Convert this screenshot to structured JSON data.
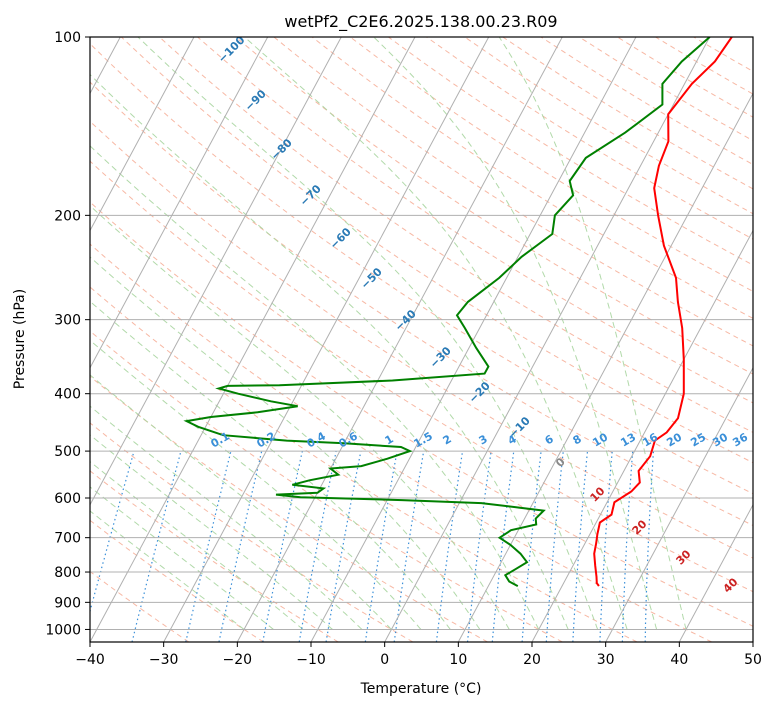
{
  "chart_data": {
    "type": "line",
    "title": "wetPf2_C2E6.2025.138.00.23.R09",
    "xlabel": "Temperature (°C)",
    "ylabel": "Pressure (hPa)",
    "xlim": [
      -40,
      50
    ],
    "ylim": [
      1050,
      100
    ],
    "y_scale": "log",
    "grid": true,
    "x_ticks": [
      -40,
      -30,
      -20,
      -10,
      0,
      10,
      20,
      30,
      40,
      50
    ],
    "y_ticks": [
      100,
      200,
      300,
      400,
      500,
      600,
      700,
      800,
      900,
      1000
    ],
    "x_tick_labels": [
      "−40",
      "−30",
      "−20",
      "−10",
      "0",
      "10",
      "20",
      "30",
      "40",
      "50"
    ],
    "y_tick_labels": [
      "100",
      "200",
      "300",
      "400",
      "500",
      "600",
      "700",
      "800",
      "900",
      "1000"
    ],
    "series": [
      {
        "color": "#ff0000",
        "points": [
          [
            3.0,
            100
          ],
          [
            2.5,
            110
          ],
          [
            1.0,
            120
          ],
          [
            0.0,
            135
          ],
          [
            2.0,
            150
          ],
          [
            2.5,
            165
          ],
          [
            3.5,
            180
          ],
          [
            6.0,
            200
          ],
          [
            9.0,
            225
          ],
          [
            13.0,
            255
          ],
          [
            15.0,
            280
          ],
          [
            17.5,
            310
          ],
          [
            20.0,
            350
          ],
          [
            22.5,
            400
          ],
          [
            23.5,
            440
          ],
          [
            23.0,
            465
          ],
          [
            22.0,
            480
          ],
          [
            22.5,
            510
          ],
          [
            22.0,
            540
          ],
          [
            23.0,
            565
          ],
          [
            22.5,
            585
          ],
          [
            21.0,
            610
          ],
          [
            21.5,
            640
          ],
          [
            20.5,
            660
          ],
          [
            21.0,
            690
          ],
          [
            21.5,
            715
          ],
          [
            22.0,
            745
          ],
          [
            23.0,
            780
          ],
          [
            24.0,
            815
          ],
          [
            24.5,
            835
          ],
          [
            25.0,
            845
          ]
        ]
      },
      {
        "color": "#008000",
        "points": [
          [
            0.0,
            100
          ],
          [
            -2.0,
            110
          ],
          [
            -3.0,
            120
          ],
          [
            -1.5,
            130
          ],
          [
            -4.5,
            145
          ],
          [
            -8.0,
            160
          ],
          [
            -8.5,
            175
          ],
          [
            -7.0,
            185
          ],
          [
            -8.0,
            200
          ],
          [
            -7.0,
            215
          ],
          [
            -9.5,
            235
          ],
          [
            -11.0,
            255
          ],
          [
            -13.5,
            280
          ],
          [
            -14.0,
            295
          ],
          [
            -12.0,
            310
          ],
          [
            -9.0,
            335
          ],
          [
            -6.0,
            360
          ],
          [
            -6.0,
            370
          ],
          [
            -18.0,
            380
          ],
          [
            -33.0,
            387
          ],
          [
            -40.0,
            388
          ],
          [
            -41.0,
            392
          ],
          [
            -38.0,
            400
          ],
          [
            -33.0,
            412
          ],
          [
            -29.0,
            420
          ],
          [
            -34.0,
            430
          ],
          [
            -40.0,
            438
          ],
          [
            -43.0,
            445
          ],
          [
            -41.0,
            455
          ],
          [
            -37.0,
            470
          ],
          [
            -28.0,
            480
          ],
          [
            -20.0,
            485
          ],
          [
            -12.0,
            492
          ],
          [
            -10.5,
            500
          ],
          [
            -13.0,
            515
          ],
          [
            -16.0,
            530
          ],
          [
            -20.0,
            535
          ],
          [
            -18.5,
            548
          ],
          [
            -22.0,
            560
          ],
          [
            -24.0,
            570
          ],
          [
            -19.5,
            578
          ],
          [
            -20.0,
            588
          ],
          [
            -25.5,
            592
          ],
          [
            -22.0,
            598
          ],
          [
            -8.0,
            605
          ],
          [
            3.0,
            612
          ],
          [
            12.0,
            630
          ],
          [
            11.5,
            650
          ],
          [
            12.0,
            665
          ],
          [
            9.0,
            680
          ],
          [
            8.0,
            700
          ],
          [
            10.0,
            720
          ],
          [
            12.0,
            745
          ],
          [
            13.5,
            770
          ],
          [
            12.5,
            790
          ],
          [
            11.5,
            810
          ],
          [
            12.5,
            830
          ],
          [
            14.0,
            845
          ]
        ]
      }
    ],
    "background_lines": {
      "isotherm_spacing_c": 10,
      "dry_adiabat_labels": [
        "−100",
        "−90",
        "−80",
        "−70",
        "−60",
        "−50",
        "−40",
        "−30",
        "−20",
        "−10",
        "0",
        "10",
        "20",
        "30",
        "40"
      ],
      "mixing_ratio_labels": [
        "0.1",
        "0.2",
        "0.4",
        "0.6",
        "1",
        "1.5",
        "2",
        "3",
        "4",
        "6",
        "8",
        "10",
        "13",
        "16",
        "20",
        "25",
        "30",
        "36"
      ]
    }
  },
  "colors": {
    "temperature_line": "#ff0000",
    "dewpoint_line": "#008000",
    "grid": "#b0b0b0",
    "dry_adiabat": "#f6b09a",
    "moist_adiabat": "#a8d5a0",
    "mixing_ratio": "#3a8fd8",
    "adiabat_label": "#2a7ab5",
    "adiabat_label_warm": "#cc2222",
    "zero_label": "#888888",
    "mixing_label": "#3a8fd8"
  }
}
